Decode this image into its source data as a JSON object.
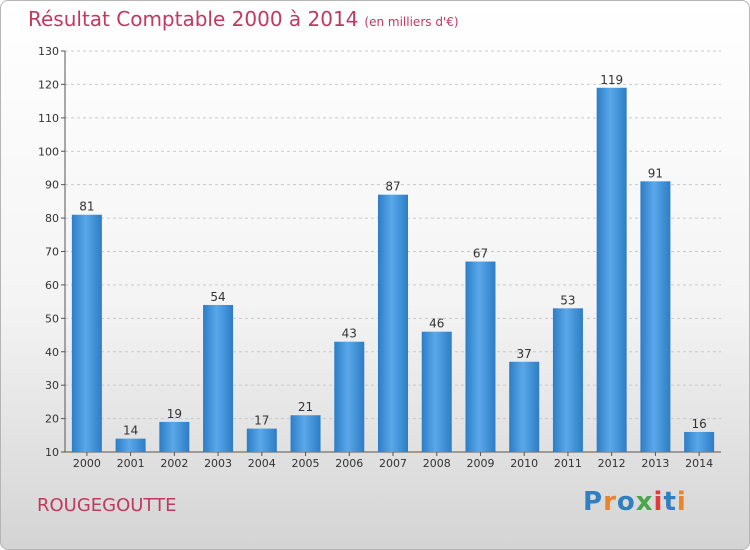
{
  "chart_data": {
    "type": "bar",
    "title": "Résultat Comptable 2000 à 2014",
    "subtitle": "(en milliers d'€)",
    "categories": [
      "2000",
      "2001",
      "2002",
      "2003",
      "2004",
      "2005",
      "2006",
      "2007",
      "2008",
      "2009",
      "2010",
      "2011",
      "2012",
      "2013",
      "2014"
    ],
    "values": [
      81,
      14,
      19,
      54,
      17,
      21,
      43,
      87,
      46,
      67,
      37,
      53,
      119,
      91,
      16
    ],
    "ylim": [
      10,
      130
    ],
    "yticks": [
      10,
      20,
      30,
      40,
      50,
      60,
      70,
      80,
      90,
      100,
      110,
      120,
      130
    ],
    "grid": true,
    "bar_color": "#3d8fd6",
    "xlabel": "",
    "ylabel": ""
  },
  "commune": "ROUGEGOUTTE",
  "logo": {
    "text": "Proxiti",
    "colors": [
      "#2f7fc1",
      "#e8842c",
      "#2f7fc1",
      "#4aa64a",
      "#e23a3a",
      "#2f7fc1",
      "#e8842c"
    ]
  }
}
